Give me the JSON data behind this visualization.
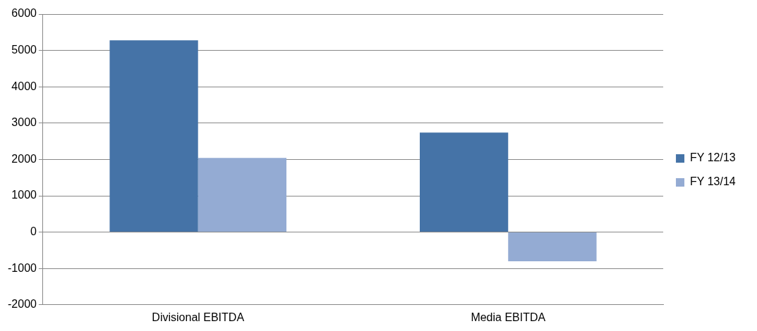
{
  "chart_data": {
    "type": "bar",
    "categories": [
      "Divisional EBITDA",
      "Media EBITDA"
    ],
    "series": [
      {
        "name": "FY 12/13",
        "color": "#4573a7",
        "values": [
          5280,
          2740
        ]
      },
      {
        "name": "FY 13/14",
        "color": "#94abd3",
        "values": [
          2040,
          -800
        ]
      }
    ],
    "ylim": [
      -2000,
      6000
    ],
    "yticks": [
      -2000,
      -1000,
      0,
      1000,
      2000,
      3000,
      4000,
      5000,
      6000
    ],
    "grid": "y",
    "legend": "right"
  }
}
